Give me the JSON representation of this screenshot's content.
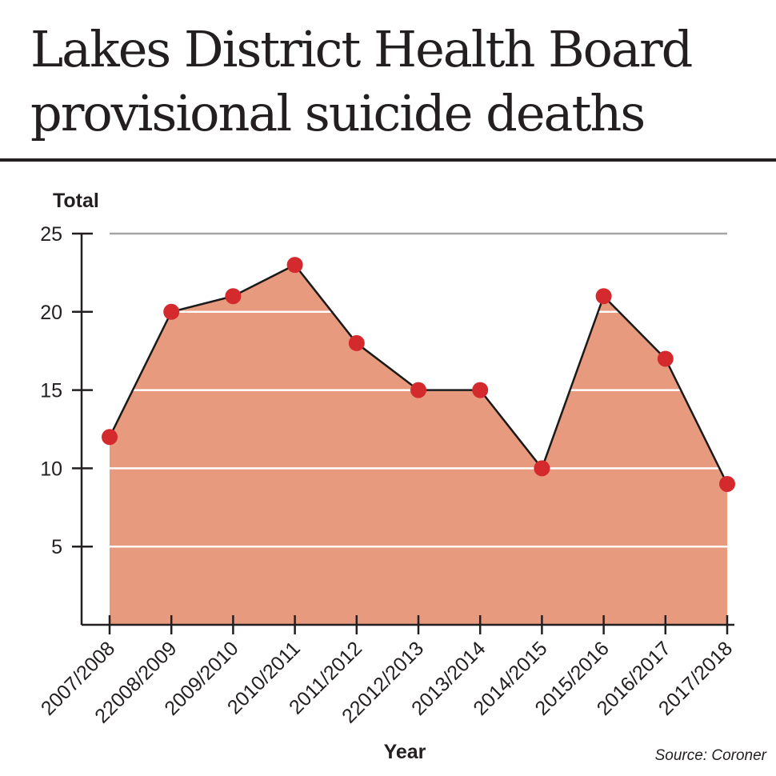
{
  "colors": {
    "area_fill": "#e89a7e",
    "line": "#1a1a1a",
    "marker": "#d42a2e",
    "inner_grid": "#ffffff",
    "outer_grid": "#a6a6a6",
    "axis": "#231f20"
  },
  "chart_data": {
    "type": "area",
    "title": "Lakes District Health Board provisional suicide deaths",
    "ylabel": "Total",
    "xlabel": "Year",
    "source": "Source: Coroner",
    "categories": [
      "2007/2008",
      "22008/2009",
      "2009/2010",
      "2010/2011",
      "2011/2012",
      "22012/2013",
      "2013/2014",
      "2014/2015",
      "2015/2016",
      "2016/2017",
      "2017/2018"
    ],
    "values": [
      12,
      20,
      21,
      23,
      18,
      15,
      15,
      10,
      21,
      17,
      9
    ],
    "ylim": [
      0,
      25
    ],
    "yticks": [
      "5",
      "10",
      "15",
      "20",
      "25"
    ],
    "grid": true,
    "markers": true
  }
}
